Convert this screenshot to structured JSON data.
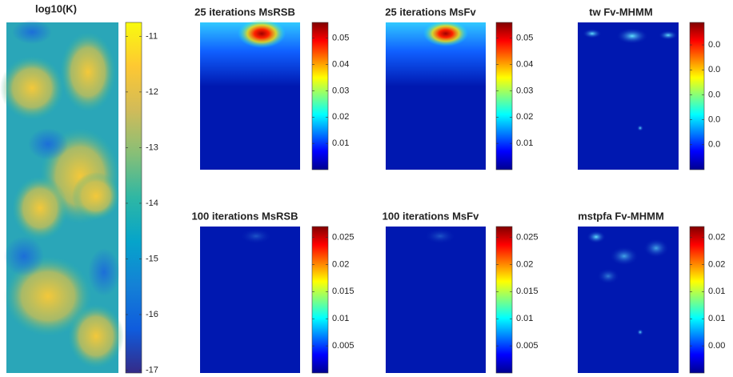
{
  "chart_data": [
    {
      "type": "heatmap",
      "title": "log10(K)",
      "colormap": "parula",
      "clim": [
        -17.05,
        -10.75
      ],
      "cticks": [
        -11,
        -12,
        -13,
        -14,
        -15,
        -16,
        -17
      ]
    },
    {
      "type": "heatmap",
      "title": "25 iterations MsRSB",
      "colormap": "jet",
      "clim": [
        0,
        0.056
      ],
      "cticks": [
        0.05,
        0.04,
        0.03,
        0.02,
        0.01
      ]
    },
    {
      "type": "heatmap",
      "title": "25 iterations MsFv",
      "colormap": "jet",
      "clim": [
        0,
        0.056
      ],
      "cticks": [
        0.05,
        0.04,
        0.03,
        0.02,
        0.01
      ]
    },
    {
      "type": "heatmap",
      "title": "tw Fv-MHMM",
      "colormap": "jet",
      "clim": [
        0,
        0.059
      ],
      "cticks": [
        {
          "value": 0.05,
          "label": "0.0"
        },
        {
          "value": 0.04,
          "label": "0.0"
        },
        {
          "value": 0.03,
          "label": "0.0"
        },
        {
          "value": 0.02,
          "label": "0.0"
        },
        {
          "value": 0.01,
          "label": "0.0"
        }
      ]
    },
    {
      "type": "heatmap",
      "title": "100 iterations MsRSB",
      "colormap": "jet",
      "clim": [
        0,
        0.027
      ],
      "cticks": [
        0.025,
        0.02,
        0.015,
        0.01,
        0.005
      ]
    },
    {
      "type": "heatmap",
      "title": "100 iterations MsFv",
      "colormap": "jet",
      "clim": [
        0,
        0.027
      ],
      "cticks": [
        0.025,
        0.02,
        0.015,
        0.01,
        0.005
      ]
    },
    {
      "type": "heatmap",
      "title": "mstpfa Fv-MHMM",
      "colormap": "jet",
      "clim": [
        0,
        0.027
      ],
      "cticks": [
        {
          "value": 0.025,
          "label": "0.02"
        },
        {
          "value": 0.02,
          "label": "0.02"
        },
        {
          "value": 0.015,
          "label": "0.01"
        },
        {
          "value": 0.01,
          "label": "0.01"
        },
        {
          "value": 0.005,
          "label": "0.00"
        }
      ]
    }
  ]
}
